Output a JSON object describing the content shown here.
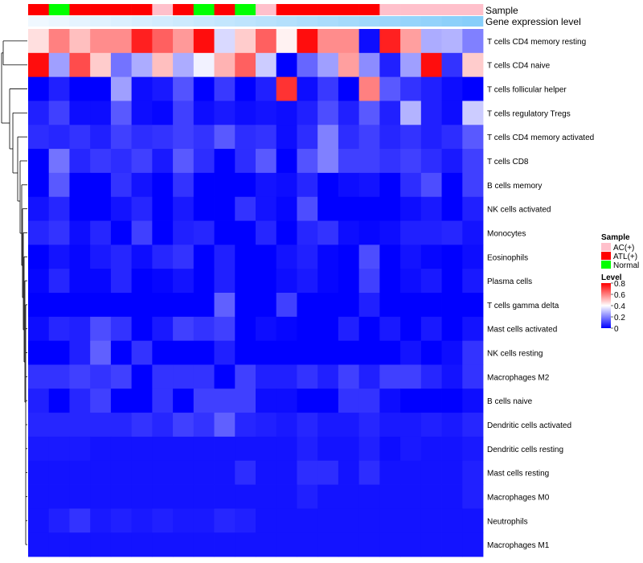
{
  "chart_data": {
    "type": "heatmap",
    "annotation_labels": {
      "sample": "Sample",
      "expression": "Gene expression level"
    },
    "sample_groups": [
      "ATL(+)",
      "Normal",
      "ATL(+)",
      "ATL(+)",
      "ATL(+)",
      "ATL(+)",
      "AC(+)",
      "ATL(+)",
      "Normal",
      "ATL(+)",
      "Normal",
      "AC(+)",
      "ATL(+)",
      "ATL(+)",
      "ATL(+)",
      "ATL(+)",
      "ATL(+)",
      "AC(+)",
      "AC(+)",
      "AC(+)",
      "AC(+)",
      "AC(+)"
    ],
    "expression_level": [
      0.0,
      0.05,
      0.1,
      0.14,
      0.19,
      0.24,
      0.29,
      0.33,
      0.38,
      0.43,
      0.48,
      0.52,
      0.57,
      0.62,
      0.67,
      0.71,
      0.76,
      0.81,
      0.86,
      0.9,
      0.95,
      1.0
    ],
    "rows": [
      "T cells CD4 memory resting",
      "T cells CD4 naive",
      "T cells follicular helper",
      "T cells regulatory  Tregs",
      "T cells CD4 memory activated",
      "T cells CD8",
      "B cells memory",
      "NK cells activated",
      "Monocytes",
      "Eosinophils",
      "Plasma cells",
      "T cells gamma delta",
      "Mast cells activated",
      "NK cells resting",
      "Macrophages M2",
      "B cells naive",
      "Dendritic cells activated",
      "Dendritic cells resting",
      "Mast cells resting",
      "Macrophages M0",
      "Neutrophils",
      "Macrophages M1"
    ],
    "values": [
      [
        0.45,
        0.6,
        0.5,
        0.58,
        0.58,
        0.75,
        0.65,
        0.56,
        0.78,
        0.34,
        0.48,
        0.65,
        0.42,
        0.78,
        0.58,
        0.58,
        0.02,
        0.75,
        0.55,
        0.27,
        0.28,
        0.2
      ],
      [
        0.78,
        0.25,
        0.68,
        0.48,
        0.18,
        0.27,
        0.5,
        0.27,
        0.38,
        0.52,
        0.65,
        0.32,
        0.0,
        0.16,
        0.25,
        0.55,
        0.22,
        0.05,
        0.25,
        0.78,
        0.08,
        0.48
      ],
      [
        0.0,
        0.05,
        0.0,
        0.0,
        0.25,
        0.02,
        0.04,
        0.13,
        0.0,
        0.09,
        0.0,
        0.05,
        0.72,
        0.02,
        0.09,
        0.0,
        0.6,
        0.14,
        0.08,
        0.05,
        0.02,
        0.0
      ],
      [
        0.05,
        0.1,
        0.02,
        0.02,
        0.14,
        0.02,
        0.01,
        0.1,
        0.02,
        0.04,
        0.02,
        0.03,
        0.02,
        0.05,
        0.12,
        0.05,
        0.14,
        0.05,
        0.28,
        0.05,
        0.02,
        0.32
      ],
      [
        0.07,
        0.06,
        0.08,
        0.05,
        0.1,
        0.07,
        0.08,
        0.1,
        0.08,
        0.14,
        0.07,
        0.08,
        0.02,
        0.07,
        0.2,
        0.07,
        0.1,
        0.06,
        0.08,
        0.05,
        0.07,
        0.14
      ],
      [
        0.0,
        0.18,
        0.06,
        0.09,
        0.07,
        0.1,
        0.04,
        0.14,
        0.07,
        0.0,
        0.07,
        0.14,
        0.0,
        0.13,
        0.2,
        0.1,
        0.1,
        0.08,
        0.1,
        0.07,
        0.04,
        0.1
      ],
      [
        0.0,
        0.14,
        0.0,
        0.0,
        0.08,
        0.03,
        0.0,
        0.08,
        0.0,
        0.0,
        0.0,
        0.03,
        0.02,
        0.06,
        0.0,
        0.02,
        0.03,
        0.0,
        0.07,
        0.12,
        0.0,
        0.1
      ],
      [
        0.03,
        0.06,
        0.0,
        0.0,
        0.03,
        0.06,
        0.0,
        0.04,
        0.0,
        0.0,
        0.08,
        0.03,
        0.01,
        0.12,
        0.0,
        0.0,
        0.0,
        0.0,
        0.02,
        0.04,
        0.0,
        0.05
      ],
      [
        0.06,
        0.08,
        0.02,
        0.06,
        0.0,
        0.1,
        0.0,
        0.05,
        0.06,
        0.0,
        0.0,
        0.06,
        0.0,
        0.06,
        0.08,
        0.02,
        0.01,
        0.02,
        0.05,
        0.05,
        0.06,
        0.03
      ],
      [
        0.0,
        0.03,
        0.01,
        0.04,
        0.06,
        0.02,
        0.06,
        0.08,
        0.0,
        0.05,
        0.0,
        0.0,
        0.03,
        0.05,
        0.01,
        0.0,
        0.12,
        0.0,
        0.03,
        0.01,
        0.0,
        0.02
      ],
      [
        0.01,
        0.06,
        0.01,
        0.01,
        0.06,
        0.0,
        0.01,
        0.03,
        0.0,
        0.05,
        0.0,
        0.0,
        0.02,
        0.04,
        0.01,
        0.0,
        0.1,
        0.0,
        0.02,
        0.04,
        0.0,
        0.04
      ],
      [
        0.0,
        0.0,
        0.0,
        0.0,
        0.0,
        0.0,
        0.0,
        0.0,
        0.0,
        0.15,
        0.0,
        0.0,
        0.1,
        0.0,
        0.0,
        0.0,
        0.05,
        0.0,
        0.0,
        0.0,
        0.0,
        0.0
      ],
      [
        0.02,
        0.06,
        0.05,
        0.12,
        0.08,
        0.0,
        0.04,
        0.1,
        0.08,
        0.1,
        0.0,
        0.02,
        0.01,
        0.0,
        0.0,
        0.05,
        0.0,
        0.04,
        0.0,
        0.04,
        0.0,
        0.03
      ],
      [
        0.0,
        0.0,
        0.05,
        0.15,
        0.0,
        0.08,
        0.0,
        0.0,
        0.0,
        0.05,
        0.0,
        0.0,
        0.0,
        0.0,
        0.0,
        0.0,
        0.0,
        0.0,
        0.03,
        0.0,
        0.02,
        0.08
      ],
      [
        0.08,
        0.08,
        0.1,
        0.08,
        0.1,
        0.0,
        0.08,
        0.08,
        0.08,
        0.0,
        0.1,
        0.05,
        0.05,
        0.08,
        0.05,
        0.1,
        0.05,
        0.1,
        0.1,
        0.06,
        0.03,
        0.08
      ],
      [
        0.05,
        0.0,
        0.06,
        0.1,
        0.0,
        0.0,
        0.08,
        0.0,
        0.1,
        0.1,
        0.1,
        0.02,
        0.02,
        0.0,
        0.0,
        0.08,
        0.08,
        0.02,
        0.0,
        0.0,
        0.0,
        0.02
      ],
      [
        0.06,
        0.06,
        0.06,
        0.06,
        0.06,
        0.08,
        0.06,
        0.1,
        0.08,
        0.15,
        0.06,
        0.05,
        0.04,
        0.06,
        0.04,
        0.04,
        0.06,
        0.04,
        0.04,
        0.05,
        0.04,
        0.06
      ],
      [
        0.04,
        0.04,
        0.04,
        0.03,
        0.03,
        0.03,
        0.03,
        0.03,
        0.03,
        0.03,
        0.03,
        0.03,
        0.03,
        0.05,
        0.03,
        0.03,
        0.05,
        0.02,
        0.04,
        0.03,
        0.03,
        0.04
      ],
      [
        0.03,
        0.03,
        0.03,
        0.03,
        0.03,
        0.03,
        0.03,
        0.03,
        0.03,
        0.03,
        0.07,
        0.03,
        0.03,
        0.07,
        0.07,
        0.03,
        0.07,
        0.03,
        0.03,
        0.03,
        0.03,
        0.05
      ],
      [
        0.03,
        0.03,
        0.03,
        0.03,
        0.03,
        0.03,
        0.03,
        0.03,
        0.03,
        0.03,
        0.03,
        0.03,
        0.03,
        0.05,
        0.03,
        0.03,
        0.03,
        0.03,
        0.03,
        0.03,
        0.03,
        0.05
      ],
      [
        0.03,
        0.05,
        0.08,
        0.04,
        0.05,
        0.04,
        0.05,
        0.04,
        0.04,
        0.06,
        0.05,
        0.03,
        0.03,
        0.03,
        0.03,
        0.03,
        0.03,
        0.03,
        0.03,
        0.03,
        0.03,
        0.03
      ],
      [
        0.03,
        0.03,
        0.03,
        0.03,
        0.03,
        0.03,
        0.03,
        0.03,
        0.03,
        0.03,
        0.03,
        0.03,
        0.03,
        0.03,
        0.03,
        0.03,
        0.03,
        0.03,
        0.03,
        0.03,
        0.03,
        0.03
      ]
    ],
    "legend": {
      "sample_title": "Sample",
      "sample_items": [
        {
          "label": "AC(+)",
          "color": "#ffc0cb"
        },
        {
          "label": "ATL(+)",
          "color": "#ff0000"
        },
        {
          "label": "Normal",
          "color": "#00ff00"
        }
      ],
      "level_title": "Level",
      "level_ticks": [
        "0.8",
        "0.6",
        "0.4",
        "0.2",
        "0"
      ],
      "level_range": [
        0,
        0.8
      ]
    },
    "color_scale": {
      "low": "#0000ff",
      "mid": "#ffffff",
      "high": "#ff0000",
      "min": 0,
      "mid_value": 0.4,
      "max": 0.8
    }
  }
}
